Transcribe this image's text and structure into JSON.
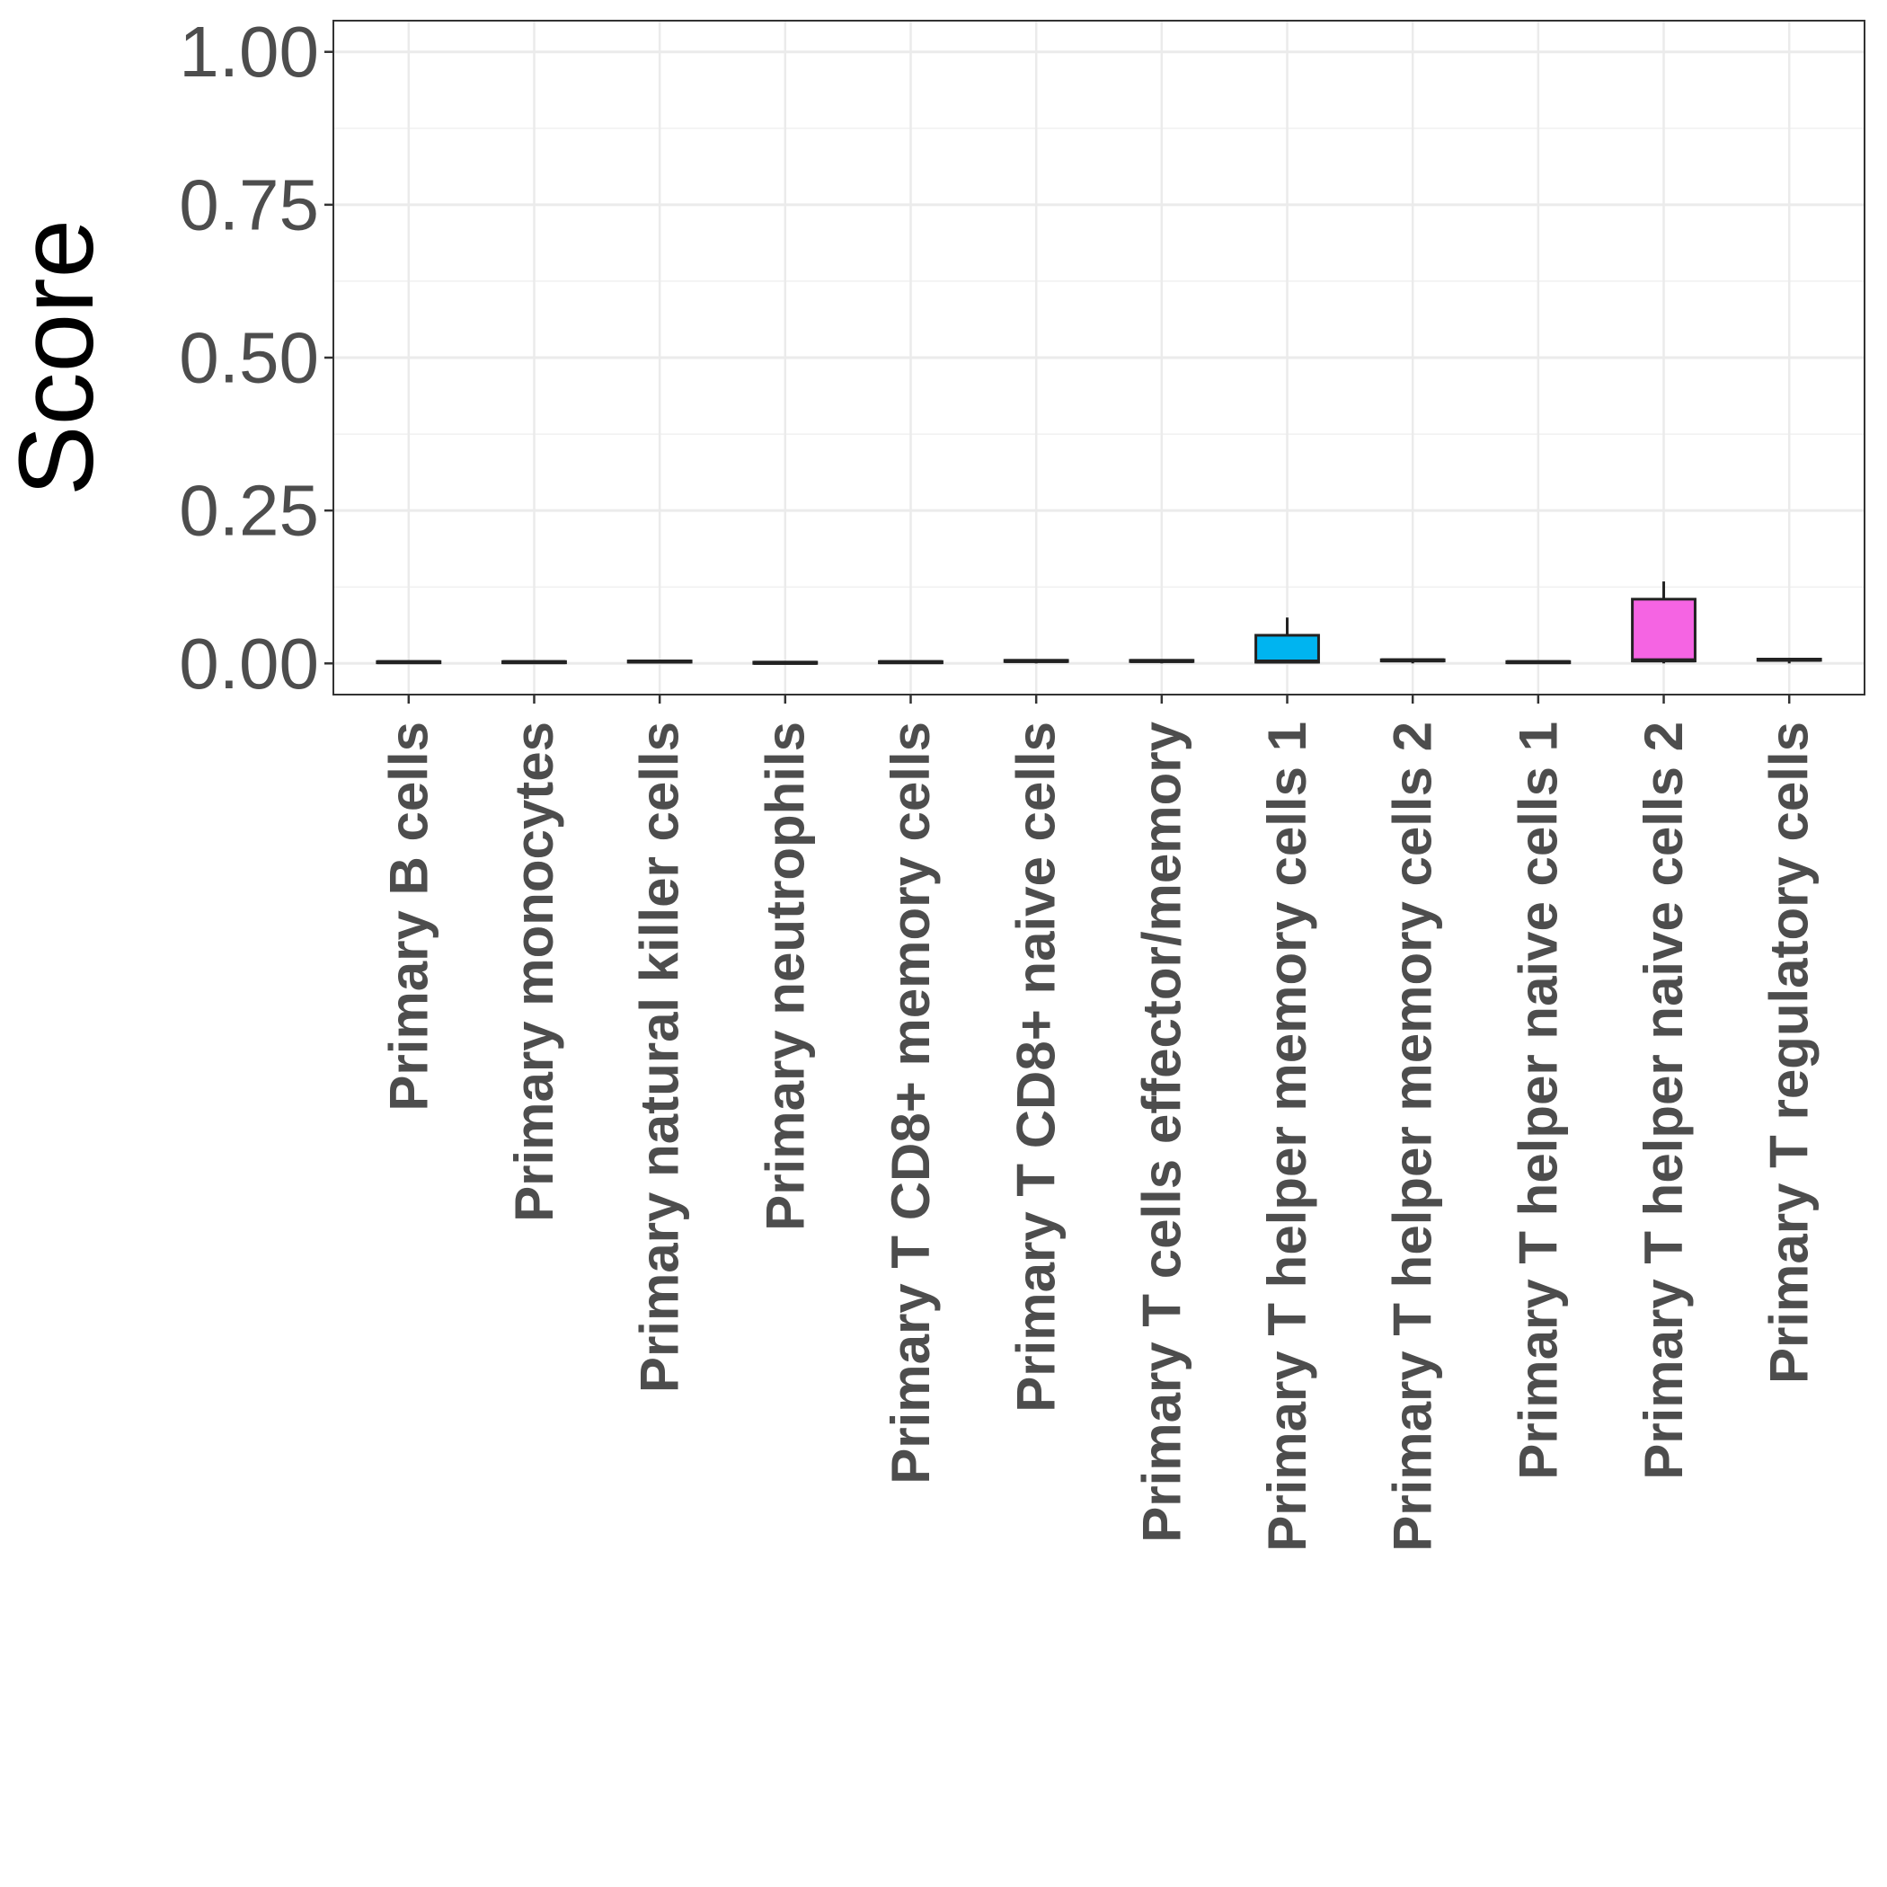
{
  "chart_data": {
    "type": "box",
    "y_label": "Score",
    "categories": [
      "Primary B cells",
      "Primary monocytes",
      "Primary natural killer cells",
      "Primary neutrophils",
      "Primary T CD8+ memory cells",
      "Primary T CD8+ naive cells",
      "Primary T cells effector/memory",
      "Primary T helper memory cells 1",
      "Primary T helper memory cells 2",
      "Primary T helper naive cells 1",
      "Primary T helper naive cells 2",
      "Primary T regulatory cells"
    ],
    "colors": [
      "#f8766d",
      "#de8c00",
      "#b79f00",
      "#7cae00",
      "#00ba38",
      "#00c08b",
      "#00bfc4",
      "#00b4f0",
      "#619cff",
      "#c77cff",
      "#f564e3",
      "#ff64b0"
    ],
    "min": [
      0,
      0,
      0,
      0,
      0,
      0,
      0,
      0,
      0,
      0,
      0,
      0
    ],
    "q1": [
      0.001,
      0.001,
      0.002,
      0.0,
      0.001,
      0.003,
      0.003,
      0.002,
      0.004,
      0.001,
      0.004,
      0.005
    ],
    "median": [
      0.002,
      0.002,
      0.003,
      0.001,
      0.002,
      0.004,
      0.004,
      0.003,
      0.005,
      0.002,
      0.005,
      0.006
    ],
    "q3": [
      0.003,
      0.003,
      0.004,
      0.002,
      0.003,
      0.005,
      0.005,
      0.046,
      0.006,
      0.003,
      0.105,
      0.007
    ],
    "max": [
      0.004,
      0.004,
      0.005,
      0.003,
      0.004,
      0.006,
      0.006,
      0.075,
      0.007,
      0.004,
      0.134,
      0.008
    ],
    "ylim": [
      -0.051,
      1.051
    ],
    "yticks": [
      {
        "value": 0,
        "label": "0.00"
      },
      {
        "value": 0.25,
        "label": "0.25"
      },
      {
        "value": 0.5,
        "label": "0.50"
      },
      {
        "value": 0.75,
        "label": "0.75"
      },
      {
        "value": 1,
        "label": "1.00"
      }
    ],
    "y_minor_ticks": [
      0.125,
      0.375,
      0.625,
      0.875
    ],
    "grid": true
  }
}
